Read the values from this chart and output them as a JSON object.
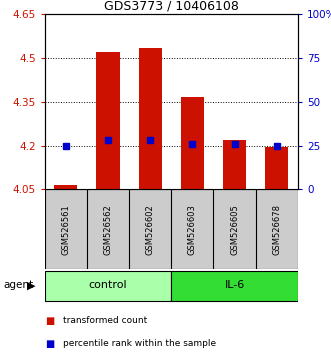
{
  "title": "GDS3773 / 10406108",
  "samples": [
    "GSM526561",
    "GSM526562",
    "GSM526602",
    "GSM526603",
    "GSM526605",
    "GSM526678"
  ],
  "bar_values": [
    4.065,
    4.52,
    4.535,
    4.365,
    4.22,
    4.195
  ],
  "percentile_values": [
    25,
    28,
    28,
    26,
    26,
    25
  ],
  "bar_bottom": 4.05,
  "ylim_left": [
    4.05,
    4.65
  ],
  "ylim_right": [
    0,
    100
  ],
  "yticks_left": [
    4.05,
    4.2,
    4.35,
    4.5,
    4.65
  ],
  "yticks_right": [
    0,
    25,
    50,
    75,
    100
  ],
  "ytick_labels_left": [
    "4.05",
    "4.2",
    "4.35",
    "4.5",
    "4.65"
  ],
  "ytick_labels_right": [
    "0",
    "25",
    "50",
    "75",
    "100%"
  ],
  "groups": [
    {
      "label": "control",
      "indices": [
        0,
        1,
        2
      ],
      "color": "#aaffaa"
    },
    {
      "label": "IL-6",
      "indices": [
        3,
        4,
        5
      ],
      "color": "#33dd33"
    }
  ],
  "bar_color": "#cc1100",
  "percentile_color": "#0000cc",
  "bar_width": 0.55,
  "agent_label": "agent",
  "legend_bar_label": "transformed count",
  "legend_pct_label": "percentile rank within the sample",
  "bg_color": "#ffffff",
  "sample_box_color": "#cccccc",
  "title_fontsize": 9,
  "tick_fontsize": 7.5,
  "sample_fontsize": 6,
  "group_fontsize": 8,
  "legend_fontsize": 6.5
}
